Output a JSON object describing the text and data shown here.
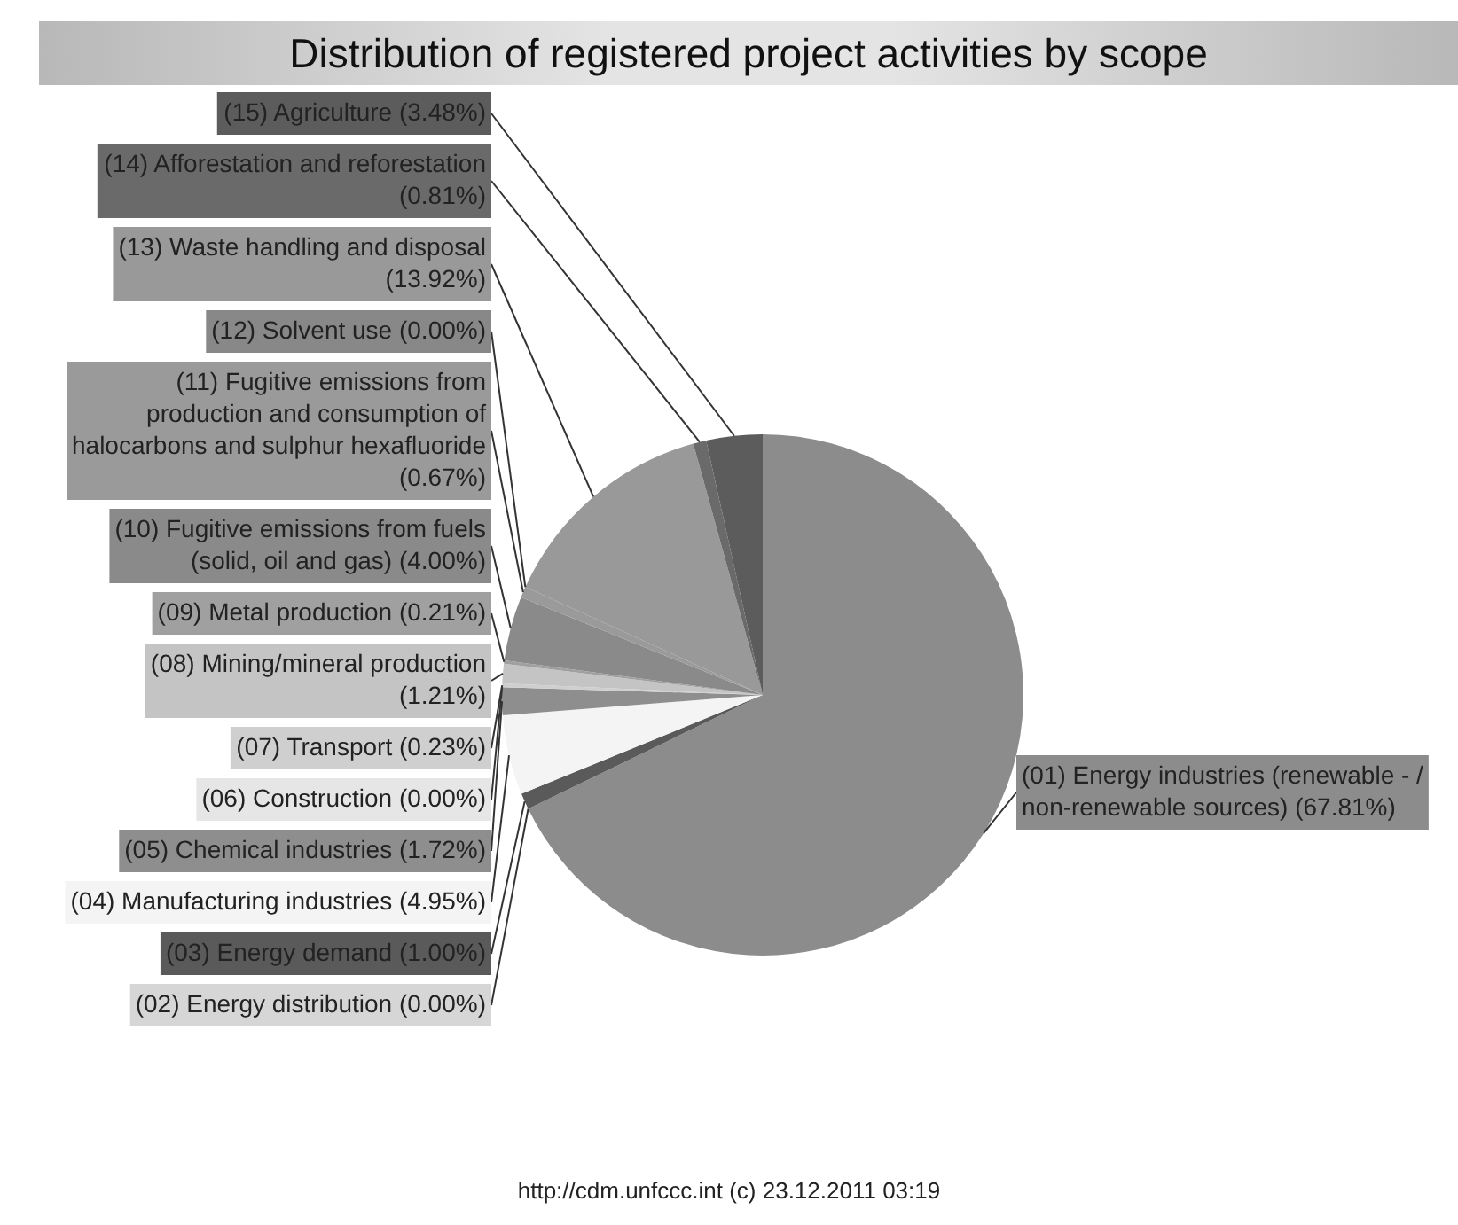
{
  "chart_data": {
    "type": "pie",
    "title": "Distribution of registered project activities by scope",
    "categories": [
      "(01) Energy industries (renewable - / non-renewable sources)",
      "(02) Energy distribution",
      "(03) Energy demand",
      "(04) Manufacturing industries",
      "(05) Chemical industries",
      "(06) Construction",
      "(07) Transport",
      "(08) Mining/mineral production",
      "(09) Metal production",
      "(10) Fugitive emissions from fuels (solid, oil and gas)",
      "(11) Fugitive emissions from production and consumption of halocarbons and sulphur hexafluoride",
      "(12) Solvent use",
      "(13) Waste handling and disposal",
      "(14) Afforestation and reforestation",
      "(15) Agriculture"
    ],
    "values": [
      67.81,
      0,
      1.0,
      4.95,
      1.72,
      0,
      0.23,
      1.21,
      0.21,
      4.0,
      0.67,
      0,
      13.92,
      0.81,
      3.48
    ],
    "value_labels": [
      "(67.81%)",
      "(0.00%)",
      "(1.00%)",
      "(4.95%)",
      "(1.72%)",
      "(0.00%)",
      "(0.23%)",
      "(1.21%)",
      "(0.21%)",
      "(4.00%)",
      "(0.67%)",
      "(0.00%)",
      "(13.92%)",
      "(0.81%)",
      "(3.48%)"
    ],
    "colors": [
      "#8c8c8c",
      "#d6d6d6",
      "#5a5a5a",
      "#f4f4f4",
      "#8e8e8e",
      "#e6e6e6",
      "#cfcfcf",
      "#c4c4c4",
      "#a0a0a0",
      "#8a8a8a",
      "#9a9a9a",
      "#888888",
      "#999999",
      "#6a6a6a",
      "#5c5c5c"
    ],
    "legend": false,
    "annotations": [
      "http://cdm.unfccc.int (c) 23.12.2011 03:19"
    ]
  }
}
